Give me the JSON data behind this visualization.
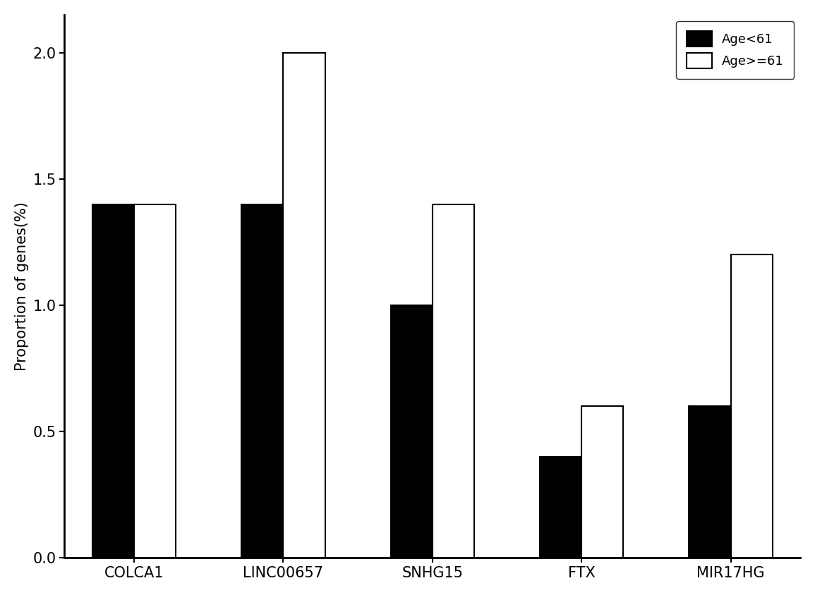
{
  "categories": [
    "COLCA1",
    "LINC00657",
    "SNHG15",
    "FTX",
    "MIR17HG"
  ],
  "age_lt61": [
    1.4,
    1.4,
    1.0,
    0.4,
    0.6
  ],
  "age_ge61": [
    1.4,
    2.0,
    1.4,
    0.6,
    1.2
  ],
  "legend_labels": [
    "Age<61",
    "Age>=61"
  ],
  "bar_color_lt61": "#000000",
  "bar_color_ge61": "#ffffff",
  "bar_edgecolor": "#000000",
  "ylabel": "Proportion of genes(%)",
  "ylim": [
    0,
    2.15
  ],
  "yticks": [
    0.0,
    0.5,
    1.0,
    1.5,
    2.0
  ],
  "background_color": "#ffffff",
  "bar_width": 0.42,
  "fontsize_ticks": 15,
  "fontsize_ylabel": 15,
  "fontsize_legend": 13
}
